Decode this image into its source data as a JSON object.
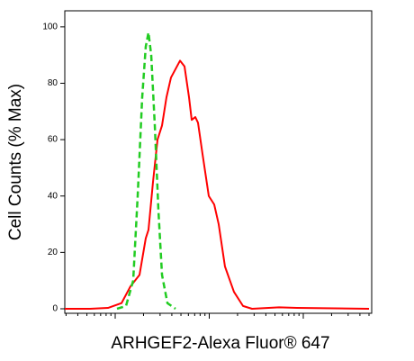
{
  "chart_data": {
    "type": "line",
    "ylabel": "Cell Counts (% Max)",
    "xlabel": "ARHGEF2-Alexa Fluor® 647",
    "xscale": "log",
    "xlim": [
      291,
      534000
    ],
    "xticks": [
      1000,
      10000,
      100000
    ],
    "ylim": [
      -1.6,
      105.7
    ],
    "yticks": [
      0,
      20,
      40,
      60,
      80,
      100
    ],
    "series": [
      {
        "color": "#ff0000",
        "dashed": false,
        "x": [
          291,
          540,
          838,
          1167,
          1455,
          1813,
          2113,
          2259,
          2523,
          2818,
          3146,
          3508,
          3917,
          4375,
          4887,
          5456,
          6095,
          6505,
          7108,
          7592,
          8472,
          9887,
          11290,
          12600,
          14690,
          18310,
          22860,
          28510,
          55200,
          85700,
          500000
        ],
        "values": [
          0,
          0,
          0.3,
          2,
          8,
          12,
          25,
          28,
          45,
          60,
          65,
          75,
          82,
          85,
          88,
          86,
          75,
          67,
          68,
          66,
          55,
          40,
          37,
          30,
          15,
          6,
          1,
          0,
          0.5,
          0.3,
          0
        ]
      },
      {
        "color": "#22cc22",
        "dashed": true,
        "x": [
          1045,
          1303,
          1553,
          1734,
          1936,
          2113,
          2259,
          2415,
          2637,
          2879,
          3146,
          3592,
          4375
        ],
        "values": [
          0,
          1,
          10,
          40,
          75,
          93,
          98,
          90,
          65,
          35,
          12,
          2,
          0
        ]
      }
    ]
  }
}
